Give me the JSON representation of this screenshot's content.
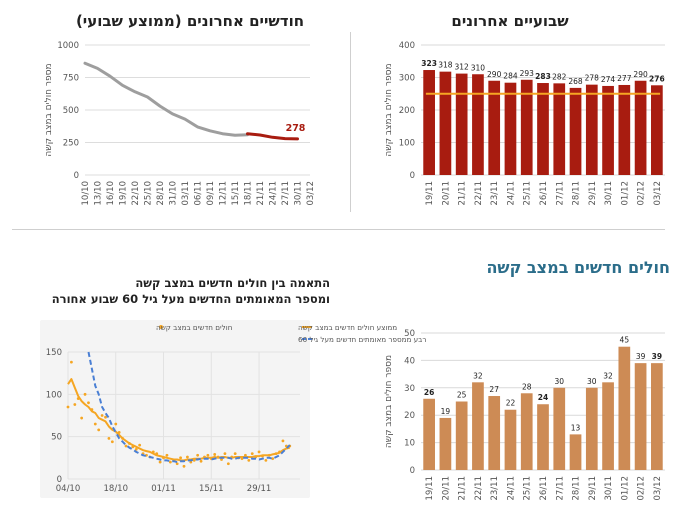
{
  "section_title": "חולים חדשים במצב קשה",
  "chart_data": [
    {
      "id": "two-weeks",
      "type": "bar",
      "title": "שבועיים אחרונים",
      "ylabel": "מספר חולים במצב קשה",
      "ylim": [
        0,
        400
      ],
      "yticks": [
        0,
        100,
        200,
        300,
        400
      ],
      "categories": [
        "19/11",
        "20/11",
        "21/11",
        "22/11",
        "23/11",
        "24/11",
        "25/11",
        "26/11",
        "27/11",
        "28/11",
        "29/11",
        "30/11",
        "01/12",
        "02/12",
        "03/12"
      ],
      "values": [
        323,
        318,
        312,
        310,
        290,
        284,
        293,
        283,
        282,
        268,
        278,
        274,
        277,
        290,
        276
      ],
      "bold_labels": [
        0,
        7,
        14
      ],
      "average": 250,
      "colors": {
        "bar": "#a81c10",
        "average": "#f5a623"
      }
    },
    {
      "id": "two-months",
      "type": "line",
      "title": "חודשיים אחרונים (ממוצע שבועי)",
      "ylabel": "מספר חולים במצב קשה",
      "ylim": [
        0,
        1000
      ],
      "yticks": [
        0,
        250,
        500,
        750,
        1000
      ],
      "xticks": [
        "10/10",
        "13/10",
        "16/10",
        "19/10",
        "22/10",
        "25/10",
        "28/10",
        "31/10",
        "03/11",
        "06/11",
        "09/11",
        "12/11",
        "15/11",
        "18/11",
        "21/11",
        "24/11",
        "27/11",
        "30/11",
        "03/12"
      ],
      "series": [
        {
          "values": [
            860,
            820,
            760,
            690,
            640,
            600,
            530,
            470,
            430,
            370,
            340,
            318,
            305,
            310
          ]
        },
        {
          "values": [
            318,
            308,
            290,
            280,
            278
          ]
        }
      ],
      "end_label": "278",
      "colors": {
        "past": "#9e9e9e",
        "recent": "#a81c10"
      }
    },
    {
      "id": "new-two-weeks",
      "type": "bar",
      "title": "",
      "ylabel": "מספר חולים במצב קשה",
      "ylim": [
        0,
        50
      ],
      "yticks": [
        0,
        10,
        20,
        30,
        40,
        50
      ],
      "categories": [
        "19/11",
        "20/11",
        "21/11",
        "22/11",
        "23/11",
        "24/11",
        "25/11",
        "26/11",
        "27/11",
        "28/11",
        "29/11",
        "30/11",
        "01/12",
        "02/12",
        "03/12"
      ],
      "values": [
        26,
        19,
        25,
        32,
        27,
        22,
        28,
        24,
        30,
        13,
        30,
        32,
        45,
        39,
        39
      ],
      "bold_labels": [
        0,
        7,
        14
      ],
      "colors": {
        "bar": "#cd8b55"
      }
    },
    {
      "id": "correlation",
      "type": "line",
      "title_line1": "התאמה בין חולים חדשים במצב קשה",
      "title_line2": "ומספר המאומתים החדשים מעל גיל 60 שבוע אחורה",
      "ylim": [
        0,
        150
      ],
      "yticks": [
        0,
        50,
        100,
        150
      ],
      "xlim": [
        0,
        68
      ],
      "xticks": [
        {
          "pos": 0,
          "label": "04/10"
        },
        {
          "pos": 14,
          "label": "18/10"
        },
        {
          "pos": 28,
          "label": "01/11"
        },
        {
          "pos": 42,
          "label": "15/11"
        },
        {
          "pos": 56,
          "label": "29/11"
        }
      ],
      "legend": [
        "חולים חדשים במצב קשה",
        "ממוצע חולים חדשים במצב קשה",
        "רבע ממספר מאומתים חדשים מעל גיל 60"
      ],
      "series": [
        {
          "name": "חולים חדשים במצב קשה",
          "style": "dots",
          "values": [
            85,
            138,
            88,
            95,
            72,
            100,
            90,
            82,
            65,
            58,
            75,
            73,
            48,
            44,
            65,
            55,
            48,
            39,
            42,
            38,
            35,
            40,
            30,
            28,
            26,
            32,
            30,
            20,
            25,
            28,
            20,
            22,
            18,
            25,
            15,
            26,
            20,
            22,
            28,
            21,
            26,
            28,
            24,
            29,
            26,
            23,
            30,
            18,
            26,
            30,
            25,
            24,
            28,
            22,
            30,
            26,
            32,
            27,
            22,
            28,
            24,
            30,
            32,
            45,
            39,
            39
          ]
        },
        {
          "name": "ממוצע חולים חדשים במצב קשה",
          "style": "line",
          "values": [
            112,
            118,
            108,
            98,
            92,
            88,
            85,
            80,
            78,
            72,
            70,
            68,
            62,
            58,
            56,
            52,
            48,
            45,
            42,
            40,
            38,
            36,
            34,
            33,
            32,
            30,
            28,
            27,
            26,
            25,
            24,
            23,
            23,
            22,
            22,
            23,
            23,
            24,
            24,
            24,
            25,
            25,
            25,
            26,
            25,
            26,
            26,
            25,
            25,
            26,
            26,
            26,
            26,
            26,
            26,
            27,
            27,
            28,
            28,
            28,
            29,
            30,
            31,
            34,
            36,
            37
          ]
        },
        {
          "name": "רבע ממספר מאומתים חדשים מעל גיל 60",
          "style": "dashed",
          "x_start": 6,
          "values": [
            152,
            130,
            110,
            100,
            85,
            78,
            72,
            62,
            55,
            48,
            44,
            40,
            37,
            35,
            32,
            30,
            28,
            27,
            26,
            25,
            24,
            23,
            22,
            22,
            21,
            21,
            20,
            21,
            21,
            22,
            22,
            23,
            23,
            24,
            24,
            24,
            23,
            24,
            25,
            25,
            25,
            25,
            24,
            24,
            25,
            25,
            25,
            25,
            24,
            24,
            23,
            24,
            25,
            25,
            24,
            26,
            28,
            32,
            36,
            40
          ]
        }
      ],
      "colors": {
        "dots": "#f5a623",
        "avg": "#f5a623",
        "positives": "#4a7fd4"
      }
    }
  ]
}
